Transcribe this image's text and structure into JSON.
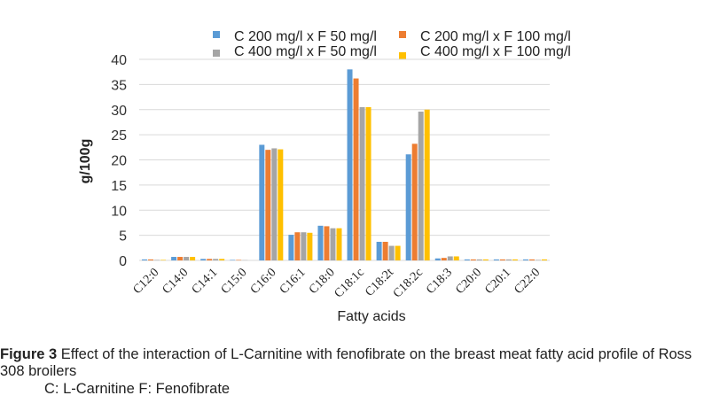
{
  "chart_data": {
    "type": "bar",
    "title": "",
    "xlabel": "Fatty acids",
    "ylabel": "g/100g",
    "ylim": [
      0,
      40
    ],
    "yticks": [
      0,
      5,
      10,
      15,
      20,
      25,
      30,
      35,
      40
    ],
    "grid": true,
    "legend_position": "top",
    "categories": [
      "C12:0",
      "C14:0",
      "C14:1",
      "C15:0",
      "C16:0",
      "C16:1",
      "C18:0",
      "C18:1c",
      "C18:2t",
      "C18:2c",
      "C18:3",
      "C20:0",
      "C20:1",
      "C22:0"
    ],
    "series": [
      {
        "name": "C 200 mg/l x F 50 mg/l",
        "color": "#5B9BD5",
        "values": [
          0.2,
          0.7,
          0.3,
          0.1,
          23.0,
          5.1,
          6.9,
          38.0,
          3.7,
          21.1,
          0.4,
          0.2,
          0.2,
          0.2
        ]
      },
      {
        "name": "C 200 mg/l x F 100 mg/l",
        "color": "#ED7D31",
        "values": [
          0.2,
          0.7,
          0.3,
          0.1,
          22.0,
          5.6,
          6.8,
          36.2,
          3.7,
          23.2,
          0.5,
          0.2,
          0.2,
          0.2
        ]
      },
      {
        "name": "C 400 mg/l x F 50 mg/l",
        "color": "#A5A5A5",
        "values": [
          0.1,
          0.7,
          0.3,
          0.05,
          22.3,
          5.6,
          6.4,
          30.5,
          2.9,
          29.6,
          0.8,
          0.2,
          0.2,
          0.1
        ]
      },
      {
        "name": "C 400 mg/l x F 100 mg/l",
        "color": "#FFC000",
        "values": [
          0.1,
          0.7,
          0.3,
          0.0,
          22.1,
          5.5,
          6.4,
          30.5,
          2.9,
          30.0,
          0.8,
          0.2,
          0.2,
          0.2
        ]
      }
    ]
  },
  "caption": {
    "label": "Figure 3",
    "text": " Effect of the interaction of L-Carnitine with fenofibrate on the breast meat fatty acid profile of Ross 308 broilers",
    "note": "C: L-Carnitine F: Fenofibrate"
  }
}
